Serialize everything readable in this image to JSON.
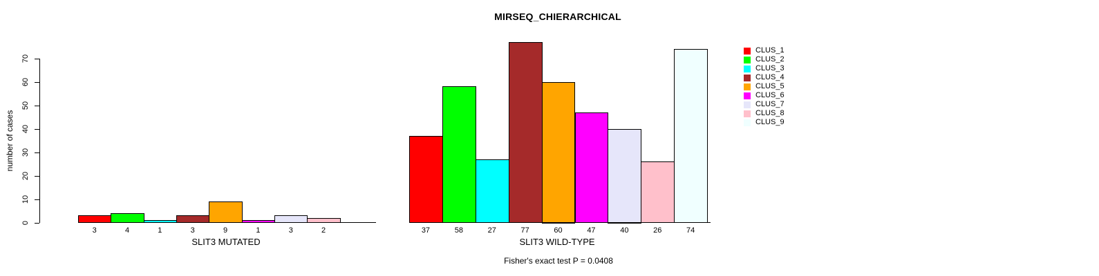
{
  "title": "MIRSEQ_CHIERARCHICAL",
  "footer": "Fisher's exact test P = 0.0408",
  "y_axis": {
    "label": "number of cases",
    "ticks": [
      0,
      10,
      20,
      30,
      40,
      50,
      60,
      70
    ]
  },
  "legend": {
    "position": "right-top",
    "items": [
      {
        "label": "CLUS_1",
        "color": "#FF0000"
      },
      {
        "label": "CLUS_2",
        "color": "#00FF00"
      },
      {
        "label": "CLUS_3",
        "color": "#00FFFF"
      },
      {
        "label": "CLUS_4",
        "color": "#A52A2A"
      },
      {
        "label": "CLUS_5",
        "color": "#FFA500"
      },
      {
        "label": "CLUS_6",
        "color": "#FF00FF"
      },
      {
        "label": "CLUS_7",
        "color": "#E6E6FA"
      },
      {
        "label": "CLUS_8",
        "color": "#FFC0CB"
      },
      {
        "label": "CLUS_9",
        "color": "#F0FFFF"
      }
    ]
  },
  "chart_data": [
    {
      "type": "bar",
      "xlabel": "SLIT3 MUTATED",
      "series_names": [
        "CLUS_1",
        "CLUS_2",
        "CLUS_3",
        "CLUS_4",
        "CLUS_5",
        "CLUS_6",
        "CLUS_7",
        "CLUS_8",
        "CLUS_9"
      ],
      "categories": [
        "3",
        "4",
        "1",
        "3",
        "9",
        "1",
        "3",
        "2",
        ""
      ],
      "values": [
        3,
        4,
        1,
        3,
        9,
        1,
        3,
        2,
        0
      ],
      "bar_colors": [
        "#FF0000",
        "#00FF00",
        "#00FFFF",
        "#A52A2A",
        "#FFA500",
        "#FF00FF",
        "#E6E6FA",
        "#FFC0CB",
        "#F0FFFF"
      ],
      "ylabel": "number of cases",
      "ylim": [
        0,
        77
      ],
      "yticks": [
        0,
        10,
        20,
        30,
        40,
        50,
        60,
        70
      ],
      "grid": false
    },
    {
      "type": "bar",
      "xlabel": "SLIT3 WILD-TYPE",
      "series_names": [
        "CLUS_1",
        "CLUS_2",
        "CLUS_3",
        "CLUS_4",
        "CLUS_5",
        "CLUS_6",
        "CLUS_7",
        "CLUS_8",
        "CLUS_9"
      ],
      "categories": [
        "37",
        "58",
        "27",
        "77",
        "60",
        "47",
        "40",
        "26",
        "74"
      ],
      "values": [
        37,
        58,
        27,
        77,
        60,
        47,
        40,
        26,
        74
      ],
      "bar_colors": [
        "#FF0000",
        "#00FF00",
        "#00FFFF",
        "#A52A2A",
        "#FFA500",
        "#FF00FF",
        "#E6E6FA",
        "#FFC0CB",
        "#F0FFFF"
      ],
      "ylim": [
        0,
        77
      ],
      "grid": false
    }
  ]
}
